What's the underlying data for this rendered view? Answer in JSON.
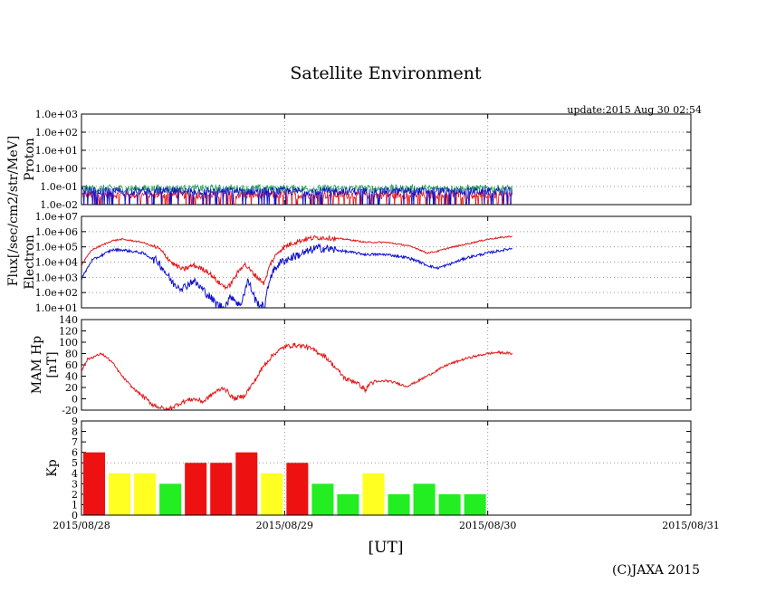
{
  "colors": {
    "red": "#e41a1c",
    "blue": "#1010d0",
    "green": "#1f9d55",
    "kp_red": "#ee1111",
    "kp_yellow": "#ffff22",
    "kp_green": "#22ee22",
    "grid": "#9a9a9a"
  },
  "chart_data": {
    "type": "multi-panel time series",
    "title": "Satellite Environment",
    "update": "update:2015 Aug 30 02:54",
    "xlabel": "[UT]",
    "copyright": "(C)JAXA 2015",
    "x_ticks": [
      "2015/08/28",
      "2015/08/29",
      "2015/08/30",
      "2015/08/31"
    ],
    "x_range_days": [
      0,
      3
    ],
    "data_end_day": 2.12,
    "shared_ylabel": "Flux[/sec/cm2/str/MeV]",
    "panels": [
      {
        "id": "proton",
        "ylabel": "Proton",
        "scale": "log",
        "ylim_exp": [
          -2,
          3
        ],
        "tick_labels": [
          "1.0e-02",
          "1.0e-01",
          "1.0e+00",
          "1.0e+01",
          "1.0e+02",
          "1.0e+03"
        ],
        "series": [
          {
            "name": "proton-red",
            "color": "red",
            "level": 0.035
          },
          {
            "name": "proton-green",
            "color": "green",
            "level": 0.075
          },
          {
            "name": "proton-blue",
            "color": "blue",
            "level": 0.055
          }
        ]
      },
      {
        "id": "electron",
        "ylabel": "Electron",
        "scale": "log",
        "ylim_exp": [
          1,
          7
        ],
        "tick_labels": [
          "1.0e+01",
          "1.0e+02",
          "1.0e+03",
          "1.0e+04",
          "1.0e+05",
          "1.0e+06",
          "1.0e+07"
        ],
        "series": [
          {
            "name": "electron-red",
            "color": "red",
            "x": [
              0.0,
              0.05,
              0.15,
              0.2,
              0.3,
              0.38,
              0.45,
              0.5,
              0.55,
              0.62,
              0.68,
              0.72,
              0.76,
              0.8,
              0.85,
              0.9,
              0.93,
              0.97,
              1.0,
              1.05,
              1.1,
              1.15,
              1.2,
              1.3,
              1.4,
              1.5,
              1.6,
              1.65,
              1.7,
              1.75,
              1.8,
              1.9,
              2.0,
              2.12
            ],
            "log10": [
              3.8,
              4.8,
              5.4,
              5.5,
              5.3,
              4.9,
              3.9,
              3.5,
              3.8,
              3.4,
              2.6,
              2.3,
              3.1,
              3.9,
              3.2,
              2.6,
              3.9,
              4.7,
              5.0,
              5.3,
              5.5,
              5.6,
              5.6,
              5.5,
              5.3,
              5.3,
              5.1,
              4.9,
              4.6,
              4.7,
              4.9,
              5.2,
              5.5,
              5.7
            ]
          },
          {
            "name": "electron-blue",
            "color": "blue",
            "x": [
              0.0,
              0.05,
              0.15,
              0.2,
              0.3,
              0.38,
              0.45,
              0.5,
              0.55,
              0.62,
              0.66,
              0.7,
              0.74,
              0.78,
              0.82,
              0.86,
              0.9,
              0.93,
              0.97,
              1.0,
              1.05,
              1.1,
              1.15,
              1.2,
              1.3,
              1.4,
              1.5,
              1.6,
              1.65,
              1.7,
              1.75,
              1.8,
              1.9,
              2.0,
              2.12
            ],
            "log10": [
              2.9,
              4.1,
              4.8,
              4.8,
              4.6,
              4.0,
              2.6,
              2.3,
              2.8,
              1.9,
              1.3,
              1.0,
              1.8,
              1.1,
              2.8,
              1.4,
              1.0,
              3.1,
              3.9,
              4.1,
              4.4,
              4.6,
              4.9,
              4.9,
              4.7,
              4.5,
              4.5,
              4.3,
              4.1,
              3.8,
              3.6,
              3.8,
              4.3,
              4.6,
              4.9
            ]
          }
        ]
      },
      {
        "id": "hp",
        "ylabel": "MAM Hp",
        "ylabel2": "[nT]",
        "scale": "linear",
        "ylim": [
          -20,
          140
        ],
        "tick_labels": [
          "-20",
          "0",
          "20",
          "40",
          "60",
          "80",
          "100",
          "120",
          "140"
        ],
        "series": [
          {
            "name": "hp-red",
            "color": "red",
            "x": [
              0.0,
              0.03,
              0.1,
              0.15,
              0.2,
              0.25,
              0.3,
              0.35,
              0.42,
              0.5,
              0.55,
              0.6,
              0.65,
              0.7,
              0.75,
              0.8,
              0.85,
              0.9,
              0.95,
              1.0,
              1.05,
              1.1,
              1.15,
              1.2,
              1.25,
              1.3,
              1.35,
              1.4,
              1.42,
              1.5,
              1.55,
              1.6,
              1.65,
              1.7,
              1.8,
              1.9,
              2.0,
              2.05,
              2.12
            ],
            "values": [
              50,
              70,
              80,
              65,
              40,
              20,
              5,
              -10,
              -20,
              -5,
              0,
              -5,
              10,
              20,
              0,
              5,
              30,
              60,
              80,
              92,
              95,
              93,
              85,
              75,
              55,
              35,
              30,
              15,
              28,
              32,
              28,
              22,
              30,
              40,
              60,
              72,
              80,
              82,
              80
            ]
          }
        ]
      },
      {
        "id": "kp",
        "ylabel": "Kp",
        "scale": "linear",
        "ylim": [
          0,
          9
        ],
        "tick_labels": [
          "0",
          "1",
          "2",
          "3",
          "4",
          "5",
          "6",
          "7",
          "8",
          "9"
        ],
        "bars": [
          {
            "value": 6,
            "color": "kp_red"
          },
          {
            "value": 4,
            "color": "kp_yellow"
          },
          {
            "value": 4,
            "color": "kp_yellow"
          },
          {
            "value": 3,
            "color": "kp_green"
          },
          {
            "value": 5,
            "color": "kp_red"
          },
          {
            "value": 5,
            "color": "kp_red"
          },
          {
            "value": 6,
            "color": "kp_red"
          },
          {
            "value": 4,
            "color": "kp_yellow"
          },
          {
            "value": 5,
            "color": "kp_red"
          },
          {
            "value": 3,
            "color": "kp_green"
          },
          {
            "value": 2,
            "color": "kp_green"
          },
          {
            "value": 4,
            "color": "kp_yellow"
          },
          {
            "value": 2,
            "color": "kp_green"
          },
          {
            "value": 3,
            "color": "kp_green"
          },
          {
            "value": 2,
            "color": "kp_green"
          },
          {
            "value": 2,
            "color": "kp_green"
          }
        ]
      }
    ]
  }
}
